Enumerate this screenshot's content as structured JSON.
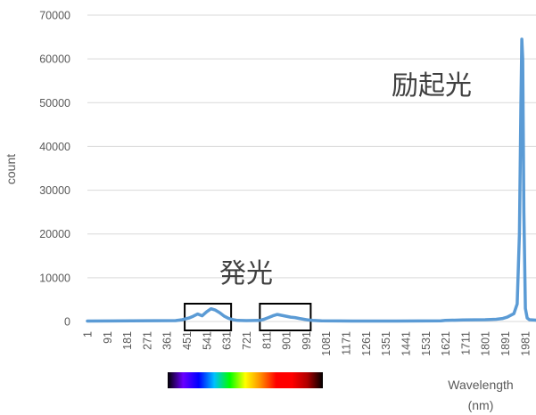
{
  "chart_data": {
    "type": "line",
    "title": "",
    "xlabel_line1": "Wavelength",
    "xlabel_line2": "(nm)",
    "ylabel": "count",
    "ylim": [
      0,
      70000
    ],
    "yticks": [
      0,
      10000,
      20000,
      30000,
      40000,
      50000,
      60000,
      70000
    ],
    "xticks": [
      1,
      91,
      181,
      271,
      361,
      451,
      541,
      631,
      721,
      811,
      901,
      991,
      1081,
      1171,
      1261,
      1351,
      1441,
      1531,
      1621,
      1711,
      1801,
      1891,
      1981
    ],
    "xlim": [
      1,
      2030
    ],
    "grid": "horizontal",
    "legend": "none",
    "series": [
      {
        "color": "#5B9BD5",
        "x": [
          1,
          200,
          400,
          430,
          460,
          480,
          500,
          520,
          540,
          560,
          580,
          600,
          620,
          640,
          660,
          680,
          720,
          780,
          800,
          820,
          840,
          860,
          880,
          900,
          920,
          940,
          960,
          980,
          1000,
          1020,
          1060,
          1200,
          1400,
          1600,
          1620,
          1700,
          1800,
          1850,
          1880,
          1900,
          1930,
          1945,
          1955,
          1962,
          1966,
          1970,
          1975,
          1982,
          1990,
          2000,
          2030
        ],
        "y": [
          100,
          150,
          200,
          400,
          800,
          1200,
          1700,
          1300,
          2200,
          2900,
          2600,
          2000,
          1200,
          700,
          400,
          250,
          200,
          250,
          500,
          900,
          1300,
          1600,
          1400,
          1200,
          1000,
          900,
          700,
          500,
          350,
          250,
          150,
          100,
          100,
          150,
          250,
          350,
          400,
          500,
          700,
          1000,
          1800,
          4000,
          20000,
          50000,
          64500,
          60000,
          25000,
          3000,
          800,
          400,
          300
        ]
      }
    ],
    "annotations": {
      "excitation": "励起光",
      "emission": "発光"
    },
    "highlight_boxes": [
      {
        "x_from": 441,
        "x_to": 651
      },
      {
        "x_from": 781,
        "x_to": 1011
      }
    ],
    "spectrum_bar": {
      "colors": [
        "#000000",
        "#6A00FF",
        "#0000FF",
        "#00BFFF",
        "#00FF00",
        "#FFFF00",
        "#FF8C00",
        "#FF0000",
        "#FF0000",
        "#B00000",
        "#000000"
      ]
    }
  }
}
